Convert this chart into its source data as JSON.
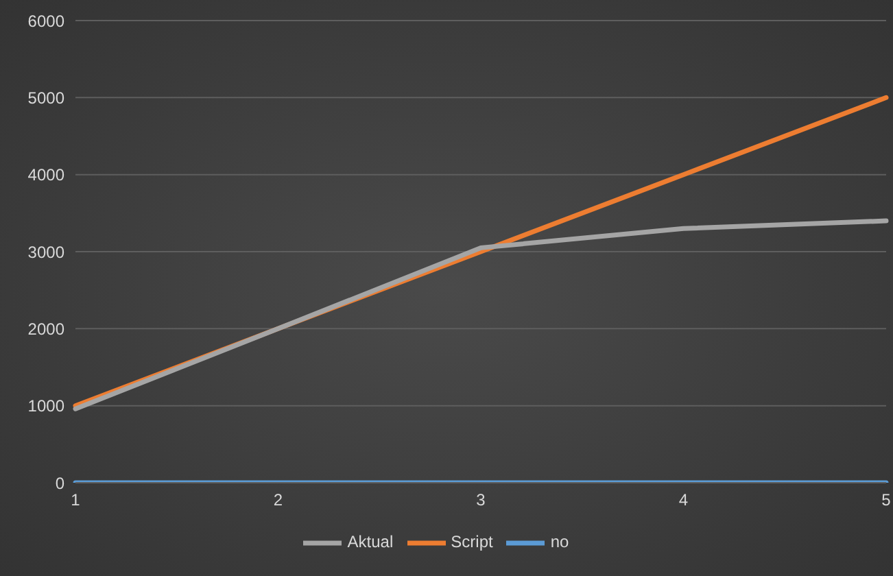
{
  "chart_data": {
    "type": "line",
    "categories": [
      "1",
      "2",
      "3",
      "4",
      "5"
    ],
    "series": [
      {
        "name": "no",
        "color": "#5b9bd5",
        "values": [
          0,
          0,
          0,
          0,
          0
        ]
      },
      {
        "name": "Script",
        "color": "#ed7d31",
        "values": [
          1000,
          2000,
          3000,
          4000,
          5000
        ]
      },
      {
        "name": "Aktual",
        "color": "#a5a5a5",
        "values": [
          960,
          2000,
          3050,
          3300,
          3400
        ]
      }
    ],
    "ylim": [
      0,
      6000
    ],
    "yticks": [
      0,
      1000,
      2000,
      3000,
      4000,
      5000,
      6000
    ],
    "grid": "y",
    "legend": "bottom",
    "marker": "none",
    "line_style": "solid"
  }
}
